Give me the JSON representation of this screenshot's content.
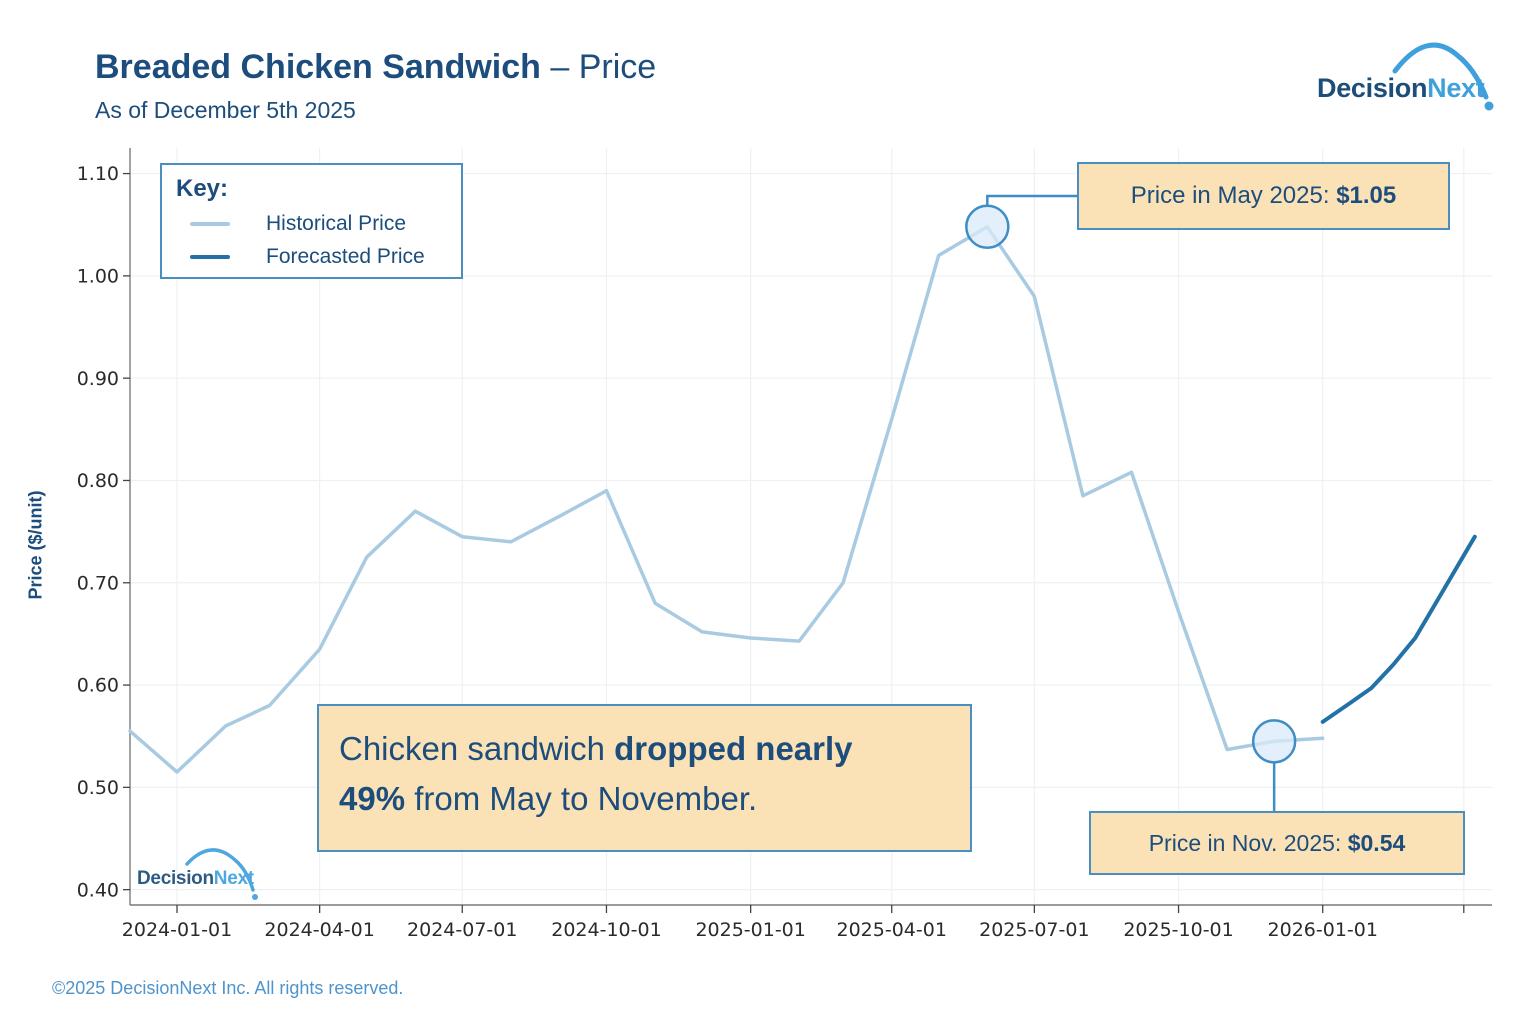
{
  "header": {
    "title_main": "Breaded Chicken Sandwich",
    "title_suffix": " – Price",
    "subtitle": "As of December 5th 2025",
    "logo": {
      "part1": "Decision",
      "part2": "Next"
    }
  },
  "legend": {
    "heading": "Key:",
    "items": [
      {
        "label": "Historical Price",
        "color": "#a9cbe2"
      },
      {
        "label": "Forecasted Price",
        "color": "#2272a8"
      }
    ]
  },
  "annotations": {
    "may": {
      "label": "Price in May 2025: ",
      "value": "$1.05"
    },
    "nov": {
      "label": "Price in Nov. 2025: ",
      "value": "$0.54"
    },
    "callout": {
      "pre": "Chicken sandwich ",
      "bold_line1": "dropped nearly",
      "bold_line2": "49%",
      "post": " from May to November."
    }
  },
  "watermark": {
    "part1": "Decision",
    "part2": "Next"
  },
  "footer": {
    "copyright": "©2025 DecisionNext Inc. All rights reserved."
  },
  "colors": {
    "navy": "#1c4d7c",
    "historical_line": "#a9cbe2",
    "forecast_line": "#2272a8",
    "annotation_fill": "#fbe2b6",
    "annotation_border": "#4a8fc0",
    "highlight_circle_fill": "#d9eaf8",
    "highlight_circle_border": "#3f8dc5",
    "grid": "#eef0f3",
    "spine": "#7a7a7a",
    "tick_text": "#2b2b2b",
    "footer_blue": "#4e94cc",
    "logo_light_blue": "#3fa0dc"
  },
  "chart_data": {
    "type": "line",
    "title": "Breaded Chicken Sandwich – Price",
    "as_of": "As of December 5th 2025",
    "xlabel": "",
    "ylabel": "Price ($/unit)",
    "ylim": [
      0.385,
      1.125
    ],
    "x_domain": [
      "2023-12-02",
      "2026-04-19"
    ],
    "grid": true,
    "legend_position": "top-left",
    "y_ticks": [
      {
        "value": 1.1,
        "label": "1.10"
      },
      {
        "value": 1.0,
        "label": "1.00"
      },
      {
        "value": 0.9,
        "label": "0.90"
      },
      {
        "value": 0.8,
        "label": "0.80"
      },
      {
        "value": 0.7,
        "label": "0.70"
      },
      {
        "value": 0.6,
        "label": "0.60"
      },
      {
        "value": 0.5,
        "label": "0.50"
      },
      {
        "value": 0.4,
        "label": "0.40"
      }
    ],
    "x_ticks": [
      {
        "date": "2024-01-01",
        "label": "2024-01-01"
      },
      {
        "date": "2024-04-01",
        "label": "2024-04-01"
      },
      {
        "date": "2024-07-01",
        "label": "2024-07-01"
      },
      {
        "date": "2024-10-01",
        "label": "2024-10-01"
      },
      {
        "date": "2025-01-01",
        "label": "2025-01-01"
      },
      {
        "date": "2025-04-01",
        "label": "2025-04-01"
      },
      {
        "date": "2025-07-01",
        "label": "2025-07-01"
      },
      {
        "date": "2025-10-01",
        "label": "2025-10-01"
      },
      {
        "date": "2026-01-01",
        "label": "2026-01-01"
      },
      {
        "date": "2026-04-01",
        "label": ""
      }
    ],
    "series": [
      {
        "name": "Historical Price",
        "color": "#a9cbe2",
        "width": 3.5,
        "points": [
          [
            "2023-12-02",
            0.555
          ],
          [
            "2024-01-01",
            0.515
          ],
          [
            "2024-02-01",
            0.56
          ],
          [
            "2024-02-29",
            0.58
          ],
          [
            "2024-04-01",
            0.635
          ],
          [
            "2024-05-01",
            0.725
          ],
          [
            "2024-06-01",
            0.77
          ],
          [
            "2024-07-01",
            0.745
          ],
          [
            "2024-08-01",
            0.74
          ],
          [
            "2024-09-01",
            0.765
          ],
          [
            "2024-10-01",
            0.79
          ],
          [
            "2024-11-01",
            0.68
          ],
          [
            "2024-12-01",
            0.652
          ],
          [
            "2025-01-01",
            0.646
          ],
          [
            "2025-02-01",
            0.643
          ],
          [
            "2025-03-01",
            0.7
          ],
          [
            "2025-04-01",
            0.86
          ],
          [
            "2025-05-01",
            1.02
          ],
          [
            "2025-06-01",
            1.048
          ],
          [
            "2025-07-01",
            0.98
          ],
          [
            "2025-08-01",
            0.785
          ],
          [
            "2025-09-01",
            0.808
          ],
          [
            "2025-10-01",
            0.672
          ],
          [
            "2025-11-01",
            0.537
          ],
          [
            "2025-12-01",
            0.545
          ],
          [
            "2026-01-01",
            0.548
          ]
        ]
      },
      {
        "name": "Forecasted Price",
        "color": "#2272a8",
        "width": 4,
        "points": [
          [
            "2026-01-01",
            0.564
          ],
          [
            "2026-01-18",
            0.582
          ],
          [
            "2026-02-01",
            0.597
          ],
          [
            "2026-02-15",
            0.62
          ],
          [
            "2026-03-01",
            0.646
          ],
          [
            "2026-03-16",
            0.685
          ],
          [
            "2026-04-08",
            0.745
          ]
        ]
      }
    ],
    "highlights": [
      {
        "series": "Historical Price",
        "date": "2025-06-01",
        "value": 1.048,
        "note": "Price in May 2025: $1.05"
      },
      {
        "series": "Historical Price",
        "date": "2025-12-01",
        "value": 0.545,
        "note": "Price in Nov. 2025: $0.54"
      }
    ]
  }
}
